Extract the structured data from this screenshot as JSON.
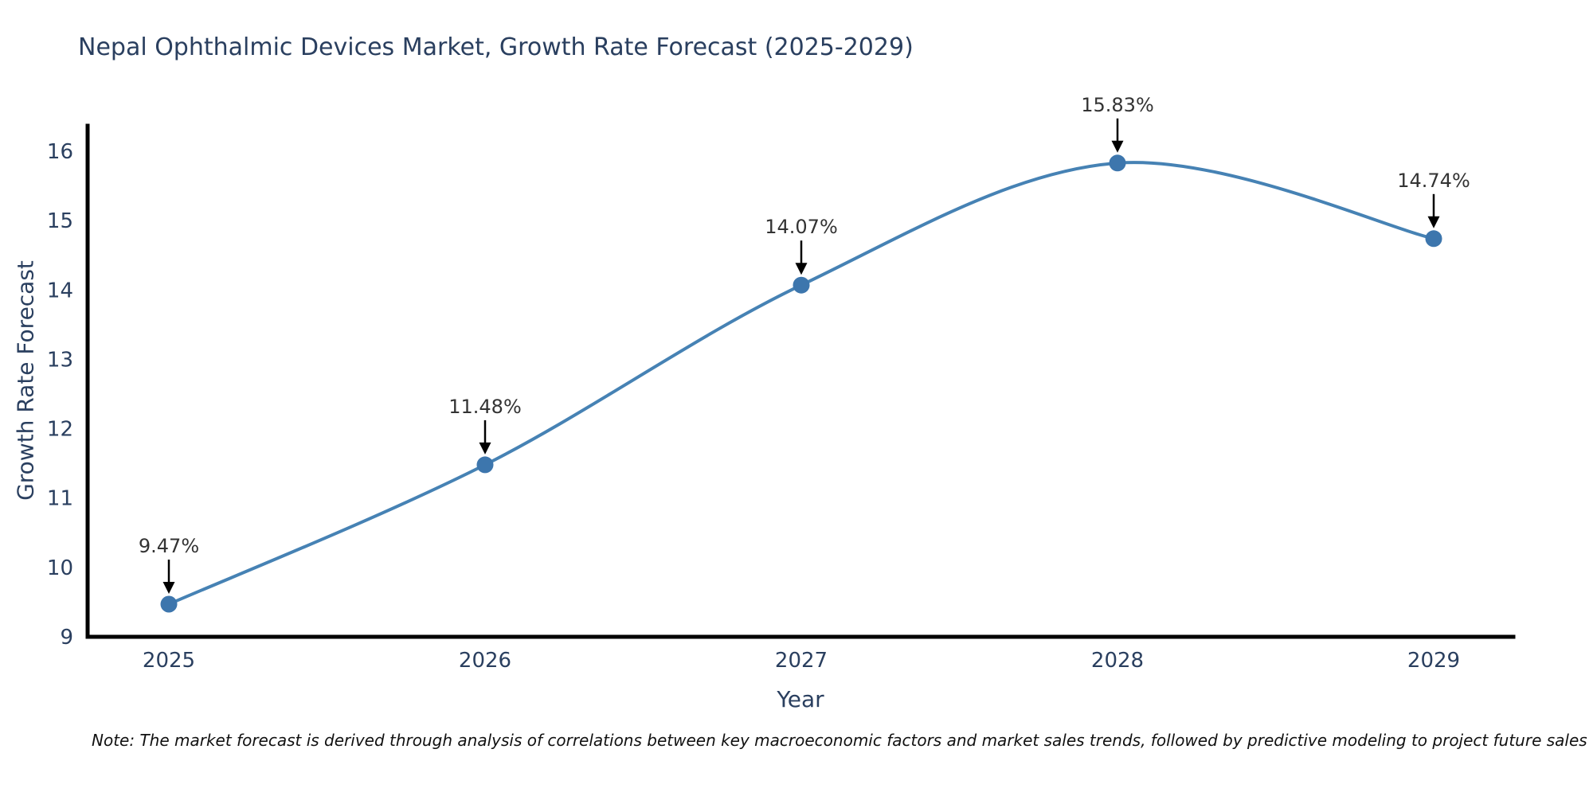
{
  "note": "Note: The market forecast is derived through analysis of correlations between key macroeconomic factors and market sales trends, followed by predictive modeling to project future sales",
  "colors": {
    "line": "#4682b4",
    "marker": "#3d76ad",
    "axis": "#000000",
    "title_text": "#2a3f5f",
    "tick_text": "#2a3f5f",
    "annotation_text": "#333333",
    "annotation_arrow": "#000000",
    "background": "#ffffff"
  },
  "chart_data": {
    "type": "line",
    "title": "Nepal Ophthalmic Devices Market, Growth Rate Forecast (2025-2029)",
    "xlabel": "Year",
    "ylabel": "Growth Rate Forecast",
    "categories": [
      "2025",
      "2026",
      "2027",
      "2028",
      "2029"
    ],
    "values": [
      9.47,
      11.48,
      14.07,
      15.83,
      14.74
    ],
    "annotations": [
      "9.47%",
      "11.48%",
      "14.07%",
      "15.83%",
      "14.74%"
    ],
    "ylim": [
      9,
      16
    ],
    "yticks": [
      9,
      10,
      11,
      12,
      13,
      14,
      15,
      16
    ],
    "grid": false,
    "legend": false,
    "line_shape": "spline",
    "marker": "circle"
  }
}
